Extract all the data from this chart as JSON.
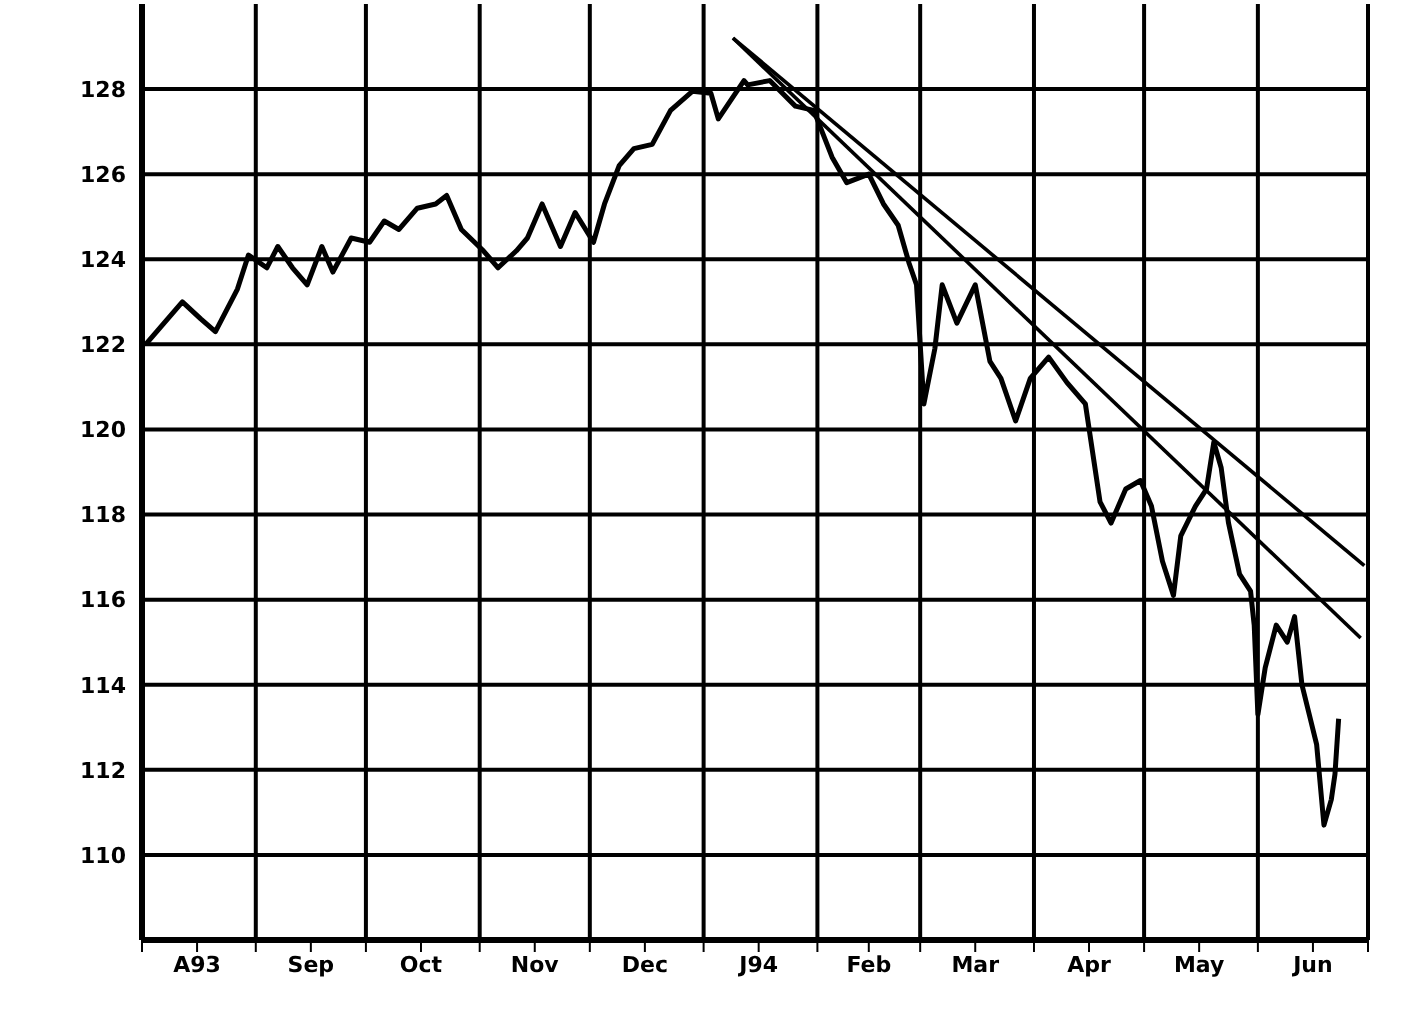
{
  "chart_data": {
    "type": "line",
    "marker": "none",
    "line_style": "solid",
    "grid": true,
    "xlim": [
      "1993-08-01",
      "1994-07-01"
    ],
    "ylim": [
      108,
      130
    ],
    "yticks": [
      110,
      112,
      114,
      116,
      118,
      120,
      122,
      124,
      126,
      128
    ],
    "xticks": [
      {
        "value": "1993-08-01",
        "label": null
      },
      {
        "value": "1993-08-16",
        "label": "A93"
      },
      {
        "value": "1993-09-01",
        "label": null
      },
      {
        "value": "1993-09-16",
        "label": "Sep"
      },
      {
        "value": "1993-10-01",
        "label": null
      },
      {
        "value": "1993-10-16",
        "label": "Oct"
      },
      {
        "value": "1993-11-01",
        "label": null
      },
      {
        "value": "1993-11-16",
        "label": "Nov"
      },
      {
        "value": "1993-12-01",
        "label": null
      },
      {
        "value": "1993-12-16",
        "label": "Dec"
      },
      {
        "value": "1994-01-01",
        "label": null
      },
      {
        "value": "1994-01-16",
        "label": "J94"
      },
      {
        "value": "1994-02-01",
        "label": null
      },
      {
        "value": "1994-02-15",
        "label": "Feb"
      },
      {
        "value": "1994-03-01",
        "label": null
      },
      {
        "value": "1994-03-16",
        "label": "Mar"
      },
      {
        "value": "1994-04-01",
        "label": null
      },
      {
        "value": "1994-04-16",
        "label": "Apr"
      },
      {
        "value": "1994-05-01",
        "label": null
      },
      {
        "value": "1994-05-16",
        "label": "May"
      },
      {
        "value": "1994-06-01",
        "label": null
      },
      {
        "value": "1994-06-16",
        "label": "Jun"
      },
      {
        "value": "1994-07-01",
        "label": null
      }
    ],
    "series": [
      {
        "color": "#000000",
        "x": [
          "1993-08-02",
          "1993-08-06",
          "1993-08-12",
          "1993-08-17",
          "1993-08-21",
          "1993-08-27",
          "1993-08-30",
          "1993-09-04",
          "1993-09-07",
          "1993-09-11",
          "1993-09-15",
          "1993-09-19",
          "1993-09-22",
          "1993-09-27",
          "1993-10-02",
          "1993-10-06",
          "1993-10-10",
          "1993-10-15",
          "1993-10-20",
          "1993-10-23",
          "1993-10-27",
          "1993-11-02",
          "1993-11-06",
          "1993-11-11",
          "1993-11-14",
          "1993-11-18",
          "1993-11-23",
          "1993-11-27",
          "1993-12-02",
          "1993-12-05",
          "1993-12-09",
          "1993-12-13",
          "1993-12-18",
          "1993-12-23",
          "1993-12-29",
          "1994-01-03",
          "1994-01-05",
          "1994-01-12",
          "1994-01-13",
          "1994-01-19",
          "1994-01-26",
          "1994-01-31",
          "1994-02-05",
          "1994-02-09",
          "1994-02-15",
          "1994-02-19",
          "1994-02-23",
          "1994-02-26",
          "1994-02-28",
          "1994-03-02",
          "1994-03-05",
          "1994-03-07",
          "1994-03-11",
          "1994-03-16",
          "1994-03-20",
          "1994-03-23",
          "1994-03-27",
          "1994-03-31",
          "1994-04-05",
          "1994-04-10",
          "1994-04-15",
          "1994-04-19",
          "1994-04-22",
          "1994-04-26",
          "1994-04-30",
          "1994-05-03",
          "1994-05-06",
          "1994-05-09",
          "1994-05-11",
          "1994-05-15",
          "1994-05-18",
          "1994-05-20",
          "1994-05-22",
          "1994-05-24",
          "1994-05-27",
          "1994-05-30",
          "1994-05-31",
          "1994-06-01",
          "1994-06-03",
          "1994-06-06",
          "1994-06-09",
          "1994-06-11",
          "1994-06-13",
          "1994-06-15",
          "1994-06-17",
          "1994-06-19",
          "1994-06-21",
          "1994-06-22",
          "1994-06-23"
        ],
        "values": [
          122.0,
          122.4,
          123.0,
          122.6,
          122.3,
          123.3,
          124.1,
          123.8,
          124.3,
          123.8,
          123.4,
          124.3,
          123.7,
          124.5,
          124.4,
          124.9,
          124.7,
          125.2,
          125.3,
          125.5,
          124.7,
          124.2,
          123.8,
          124.2,
          124.5,
          125.3,
          124.3,
          125.1,
          124.4,
          125.3,
          126.2,
          126.6,
          126.7,
          127.5,
          127.95,
          127.9,
          127.3,
          128.2,
          128.1,
          128.2,
          127.6,
          127.5,
          126.4,
          125.8,
          126.0,
          125.3,
          124.8,
          123.9,
          123.4,
          120.6,
          121.9,
          123.4,
          122.5,
          123.4,
          121.6,
          121.2,
          120.2,
          121.2,
          121.7,
          121.1,
          120.6,
          118.3,
          117.8,
          118.6,
          118.8,
          118.2,
          116.9,
          116.1,
          117.5,
          118.2,
          118.6,
          119.7,
          119.1,
          117.8,
          116.6,
          116.2,
          115.4,
          113.3,
          114.4,
          115.4,
          115.0,
          115.6,
          114.0,
          113.3,
          112.6,
          110.7,
          111.3,
          111.9,
          113.2
        ]
      },
      {
        "type": "line",
        "color": "#000000",
        "x": [
          "1994-01-09",
          "1994-06-30"
        ],
        "values": [
          129.2,
          116.8
        ]
      },
      {
        "type": "line",
        "color": "#000000",
        "x": [
          "1994-01-09",
          "1994-06-29"
        ],
        "values": [
          129.2,
          115.1
        ]
      }
    ]
  }
}
